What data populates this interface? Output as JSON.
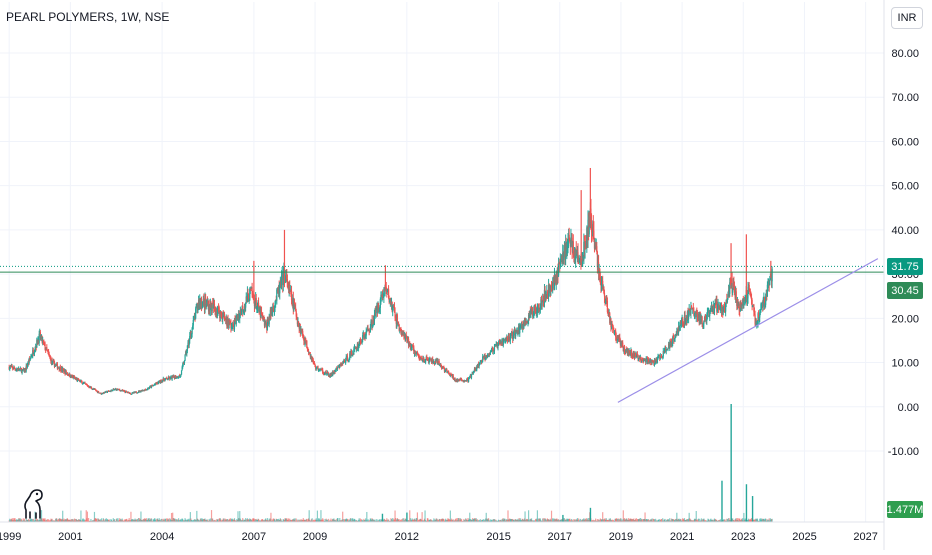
{
  "header": {
    "title": "PEARL POLYMERS, 1W, NSE"
  },
  "currency": "INR",
  "logo_icon": "tradingview-logo-icon",
  "colors": {
    "up": "#26a69a",
    "down": "#ef5350",
    "grid": "#f0f3fa",
    "last_price": "#089981",
    "prev_close": "#2e8b57",
    "trendline": "#9c8fe8",
    "axis_text": "#131722",
    "volume_label": "#2e9e4f"
  },
  "chart_data": {
    "type": "candlestick",
    "title": "PEARL POLYMERS, 1W, NSE",
    "y_ticks": [
      "80.00",
      "70.00",
      "60.00",
      "50.00",
      "40.00",
      "30.00",
      "20.00",
      "10.00",
      "0.00",
      "-10.00"
    ],
    "y_tick_values": [
      80,
      70,
      60,
      50,
      40,
      30,
      20,
      10,
      0,
      -10
    ],
    "x_ticks": [
      "1999",
      "2001",
      "2004",
      "2007",
      "2009",
      "2012",
      "2015",
      "2017",
      "2019",
      "2021",
      "2023",
      "2025",
      "2027"
    ],
    "x_tick_years": [
      1999,
      2001,
      2004,
      2007,
      2009,
      2012,
      2015,
      2017,
      2019,
      2021,
      2023,
      2025,
      2027
    ],
    "ylim": [
      -15,
      85
    ],
    "xlim": [
      1998.7,
      2027.6
    ],
    "price_levels": [
      {
        "name": "last",
        "value": 31.75,
        "label": "31.75",
        "style": "dotted"
      },
      {
        "name": "close",
        "value": 30.45,
        "label": "30.45",
        "style": "solid"
      }
    ],
    "volume_label": "1.477M",
    "trendline": {
      "start": [
        2018.9,
        1.0
      ],
      "end": [
        2027.4,
        33.5
      ]
    },
    "price_path": [
      [
        1999.0,
        9
      ],
      [
        1999.5,
        8
      ],
      [
        2000.0,
        16
      ],
      [
        2000.4,
        10
      ],
      [
        2001.0,
        7
      ],
      [
        2001.5,
        5
      ],
      [
        2002.0,
        3
      ],
      [
        2002.5,
        4
      ],
      [
        2003.0,
        3
      ],
      [
        2003.5,
        4
      ],
      [
        2004.0,
        6
      ],
      [
        2004.6,
        7
      ],
      [
        2005.2,
        24
      ],
      [
        2005.8,
        22
      ],
      [
        2006.3,
        18
      ],
      [
        2006.9,
        26
      ],
      [
        2007.4,
        18
      ],
      [
        2008.0,
        30
      ],
      [
        2008.5,
        18
      ],
      [
        2009.0,
        9
      ],
      [
        2009.5,
        7
      ],
      [
        2010.2,
        12
      ],
      [
        2010.8,
        18
      ],
      [
        2011.3,
        27
      ],
      [
        2011.8,
        17
      ],
      [
        2012.4,
        11
      ],
      [
        2013.0,
        10
      ],
      [
        2013.6,
        6
      ],
      [
        2014.0,
        6
      ],
      [
        2014.5,
        11
      ],
      [
        2015.0,
        14
      ],
      [
        2015.6,
        17
      ],
      [
        2016.2,
        22
      ],
      [
        2016.8,
        28
      ],
      [
        2017.3,
        38
      ],
      [
        2017.7,
        32
      ],
      [
        2018.0,
        43
      ],
      [
        2018.3,
        30
      ],
      [
        2018.7,
        18
      ],
      [
        2019.1,
        13
      ],
      [
        2019.6,
        11
      ],
      [
        2020.1,
        10
      ],
      [
        2020.5,
        13
      ],
      [
        2020.9,
        18
      ],
      [
        2021.3,
        22
      ],
      [
        2021.7,
        19
      ],
      [
        2022.1,
        23
      ],
      [
        2022.4,
        22
      ],
      [
        2022.6,
        28
      ],
      [
        2022.9,
        22
      ],
      [
        2023.2,
        27
      ],
      [
        2023.4,
        19
      ],
      [
        2023.7,
        24
      ],
      [
        2023.95,
        30.45
      ]
    ],
    "spikes": [
      [
        2007.0,
        33
      ],
      [
        2008.0,
        40
      ],
      [
        2011.3,
        32
      ],
      [
        2017.7,
        49
      ],
      [
        2018.0,
        54
      ],
      [
        2022.6,
        37
      ],
      [
        2023.1,
        39
      ],
      [
        2023.9,
        33
      ]
    ],
    "volume_spikes": [
      [
        2022.6,
        1.0
      ],
      [
        2022.3,
        0.35
      ],
      [
        2023.1,
        0.32
      ],
      [
        2023.3,
        0.22
      ],
      [
        2018.0,
        0.12
      ],
      [
        2012.0,
        0.08
      ],
      [
        2011.2,
        0.07
      ],
      [
        2017.1,
        0.06
      ]
    ]
  }
}
